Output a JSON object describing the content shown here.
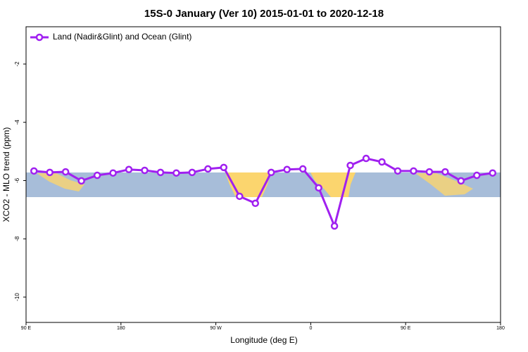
{
  "chart_data": {
    "type": "line",
    "title": "15S-0 January (Ver 10)   2015-01-01 to 2020-12-18",
    "x_label": "Longitude (deg E)",
    "y_label": "XCO2 - MLO trend (ppm)",
    "x": [
      97.5,
      112.5,
      127.5,
      142.5,
      157.5,
      172.5,
      187.5,
      202.5,
      217.5,
      232.5,
      247.5,
      262.5,
      277.5,
      292.5,
      307.5,
      322.5,
      337.5,
      352.5,
      367.5,
      382.5,
      397.5,
      412.5,
      427.5,
      442.5,
      457.5,
      472.5,
      487.5,
      502.5,
      517.5,
      532.5
    ],
    "series": [
      {
        "name": "Land (Nadir&Glint) and Ocean (Glint)",
        "color": "#a020f0",
        "values": [
          -5.67,
          -5.72,
          -5.7,
          -6.01,
          -5.82,
          -5.74,
          -5.62,
          -5.65,
          -5.72,
          -5.74,
          -5.72,
          -5.6,
          -5.55,
          -6.54,
          -6.78,
          -5.72,
          -5.62,
          -5.6,
          -6.25,
          -7.56,
          -5.48,
          -5.24,
          -5.36,
          -5.67,
          -5.67,
          -5.7,
          -5.7,
          -6.01,
          -5.82,
          -5.74
        ]
      }
    ],
    "xlim": [
      90,
      540
    ],
    "xticks": [
      {
        "value": 90,
        "label": "90 E"
      },
      180,
      {
        "value": 270,
        "label": "90 W"
      },
      {
        "value": 360,
        "label": "0"
      },
      {
        "value": 450,
        "label": "90 E"
      },
      {
        "value": 540,
        "label": "180"
      }
    ],
    "ylim": [
      -10.87,
      -0.72
    ],
    "yticks": [
      -2,
      -4,
      -6,
      -8,
      -10
    ],
    "legend": "top-left"
  }
}
